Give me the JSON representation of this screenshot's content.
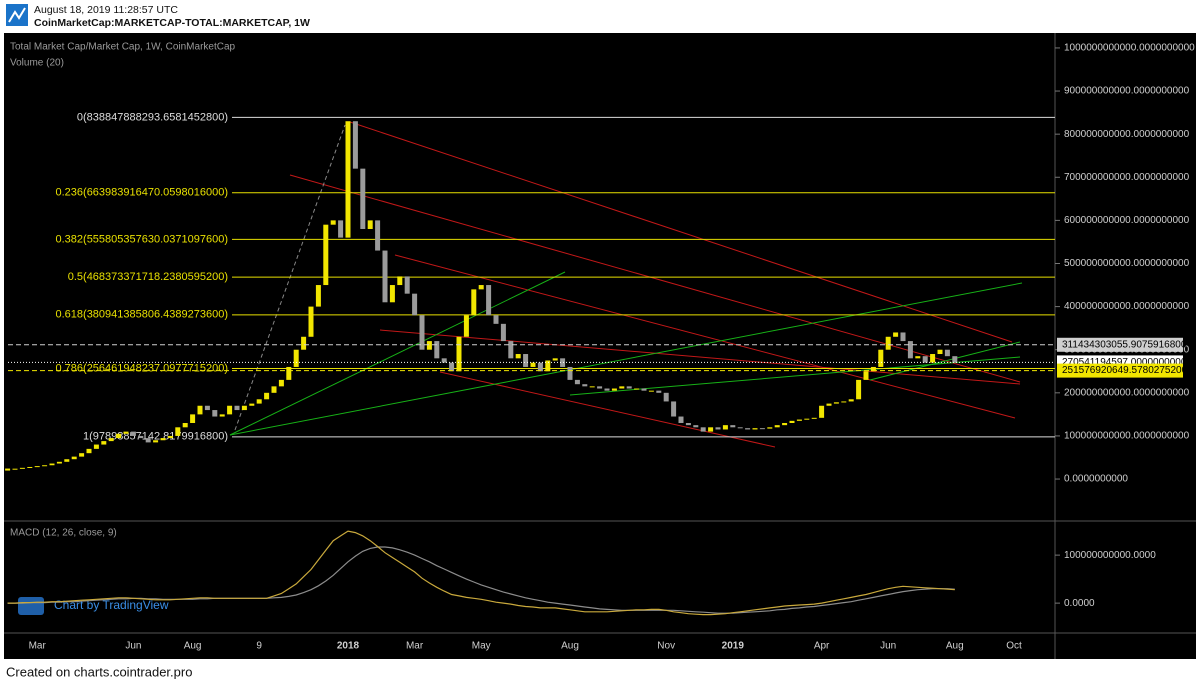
{
  "header": {
    "timestamp": "August 18, 2019 11:28:57 UTC",
    "symbol": "CoinMarketCap:MARKETCAP-TOTAL:MARKETCAP, 1W"
  },
  "footer": "Created on charts.cointrader.pro",
  "chart_data": {
    "type": "candlestick",
    "title": "Total Market Cap/Market Cap, 1W, CoinMarketCap",
    "subtitle": "Volume (20)",
    "watermark": "Chart by TradingView",
    "up_color": "#f2e600",
    "down_color": "#9b9b9b",
    "categories": [
      null,
      null,
      null,
      null,
      "Mar",
      null,
      null,
      null,
      null,
      null,
      null,
      null,
      null,
      null,
      null,
      null,
      null,
      "Jun",
      null,
      null,
      null,
      null,
      null,
      null,
      null,
      "Aug",
      null,
      null,
      null,
      null,
      null,
      null,
      null,
      null,
      "9",
      null,
      null,
      null,
      null,
      null,
      null,
      null,
      null,
      null,
      null,
      null,
      "2018",
      null,
      null,
      null,
      null,
      null,
      null,
      null,
      null,
      "Mar",
      null,
      null,
      null,
      null,
      null,
      null,
      null,
      null,
      "May",
      null,
      null,
      null,
      null,
      null,
      null,
      null,
      null,
      null,
      null,
      null,
      "Aug",
      null,
      null,
      null,
      null,
      null,
      null,
      null,
      null,
      null,
      null,
      null,
      null,
      "Nov",
      null,
      null,
      null,
      null,
      null,
      null,
      null,
      null,
      "2019",
      null,
      null,
      null,
      null,
      null,
      null,
      null,
      null,
      null,
      null,
      null,
      "Apr",
      null,
      null,
      null,
      null,
      null,
      null,
      null,
      null,
      "Jun",
      null,
      null,
      null,
      null,
      null,
      null,
      null,
      null,
      "Aug",
      null,
      null,
      null,
      null,
      null,
      null,
      null,
      "Oct"
    ],
    "values": [
      22000000000.0,
      24000000000.0,
      26000000000.0,
      28000000000.0,
      30000000000.0,
      32000000000.0,
      36000000000.0,
      40000000000.0,
      46000000000.0,
      52000000000.0,
      60000000000.0,
      70000000000.0,
      80000000000.0,
      88000000000.0,
      95000000000.0,
      105000000000.0,
      110000000000.0,
      100000000000.0,
      95000000000.0,
      85000000000.0,
      90000000000.0,
      95000000000.0,
      100000000000.0,
      120000000000.0,
      130000000000.0,
      150000000000.0,
      170000000000.0,
      160000000000.0,
      145000000000.0,
      150000000000.0,
      170000000000.0,
      160000000000.0,
      170000000000.0,
      175000000000.0,
      185000000000.0,
      200000000000.0,
      215000000000.0,
      230000000000.0,
      260000000000.0,
      300000000000.0,
      330000000000.0,
      400000000000.0,
      450000000000.0,
      590000000000.0,
      600000000000.0,
      560000000000.0,
      830000000000.0,
      720000000000.0,
      580000000000.0,
      600000000000.0,
      530000000000.0,
      410000000000.0,
      450000000000.0,
      470000000000.0,
      430000000000.0,
      380000000000.0,
      300000000000.0,
      320000000000.0,
      280000000000.0,
      270000000000.0,
      250000000000.0,
      330000000000.0,
      380000000000.0,
      440000000000.0,
      450000000000.0,
      380000000000.0,
      360000000000.0,
      320000000000.0,
      280000000000.0,
      290000000000.0,
      260000000000.0,
      270000000000.0,
      250000000000.0,
      275000000000.0,
      280000000000.0,
      260000000000.0,
      230000000000.0,
      220000000000.0,
      215000000000.0,
      215000000000.0,
      210000000000.0,
      205000000000.0,
      210000000000.0,
      215000000000.0,
      210000000000.0,
      210000000000.0,
      205000000000.0,
      205000000000.0,
      200000000000.0,
      180000000000.0,
      145000000000.0,
      130000000000.0,
      125000000000.0,
      120000000000.0,
      110000000000.0,
      120000000000.0,
      115000000000.0,
      125000000000.0,
      120000000000.0,
      118000000000.0,
      115000000000.0,
      118000000000.0,
      117000000000.0,
      120000000000.0,
      125000000000.0,
      130000000000.0,
      135000000000.0,
      138000000000.0,
      140000000000.0,
      142000000000.0,
      170000000000.0,
      175000000000.0,
      178000000000.0,
      180000000000.0,
      185000000000.0,
      230000000000.0,
      250000000000.0,
      260000000000.0,
      300000000000.0,
      330000000000.0,
      340000000000.0,
      320000000000.0,
      280000000000.0,
      285000000000.0,
      270000000000.0,
      290000000000.0,
      300000000000.0,
      285000000000.0,
      270000000000.0,
      null,
      null,
      null,
      null,
      null,
      null,
      null,
      null
    ],
    "ylim": [
      -95000000000.0,
      1030000000000.0
    ],
    "yticks": [
      {
        "value": 1000000000000.0,
        "label": "1000000000000.0000000000"
      },
      {
        "value": 900000000000.0,
        "label": "900000000000.0000000000"
      },
      {
        "value": 800000000000.0,
        "label": "800000000000.0000000000"
      },
      {
        "value": 700000000000.0,
        "label": "700000000000.0000000000"
      },
      {
        "value": 600000000000.0,
        "label": "600000000000.0000000000"
      },
      {
        "value": 500000000000.0,
        "label": "500000000000.0000000000"
      },
      {
        "value": 400000000000.0,
        "label": "400000000000.0000000000"
      },
      {
        "value": 300000000000.0,
        "label": "300000000000.0000000000"
      },
      {
        "value": 200000000000.0,
        "label": "200000000000.0000000000"
      },
      {
        "value": 100000000000.0,
        "label": "100000000000.0000000000"
      },
      {
        "value": 0,
        "label": "0.0000000000"
      }
    ],
    "fib_levels": [
      {
        "label": "0(838847888293.6581452800)",
        "value": 838847888293.6581,
        "color": "#dddddd"
      },
      {
        "label": "0.236(663983916470.0598016000)",
        "value": 663983916470.0598,
        "color": "#e8e000"
      },
      {
        "label": "0.382(555805357630.0371097600)",
        "value": 555805357630.0371,
        "color": "#e8e000"
      },
      {
        "label": "0.5(468373371718.2380595200)",
        "value": 468373371718.238,
        "color": "#e8e000"
      },
      {
        "label": "0.618(380941385806.4389273600)",
        "value": 380941385806.4389,
        "color": "#e8e000"
      },
      {
        "label": "0.786(256461948237.0977715200)",
        "value": 256461948237.0978,
        "color": "#e8e000"
      },
      {
        "label": "1(97898857142.8179916800)",
        "value": 97898857142.818,
        "color": "#dddddd"
      }
    ],
    "price_labels": [
      {
        "label": "311434303055.9075916800",
        "value": 311434303055.9076,
        "color": "#cfcfcf"
      },
      {
        "label": "270541194597.0000000000",
        "value": 270541194597,
        "color": "#ffffff"
      },
      {
        "label": "251576920649.5780275200",
        "value": 251576920649.578,
        "color": "#f2e600"
      }
    ],
    "macd": {
      "title": "MACD (12, 26, close, 9)",
      "line_color": "#c9a93c",
      "signal_color": "#8c8c8c",
      "ylim": [
        -56000000000.0,
        169000000000.0
      ],
      "yticks": [
        {
          "value": 100000000000.0,
          "label": "100000000000.0000"
        },
        {
          "value": 0,
          "label": "0.0000"
        }
      ],
      "line": [
        0,
        0,
        1000000000.0,
        1000000000.0,
        2000000000.0,
        2000000000.0,
        3000000000.0,
        3000000000.0,
        4000000000.0,
        5000000000.0,
        6000000000.0,
        7000000000.0,
        8000000000.0,
        9000000000.0,
        10000000000.0,
        11000000000.0,
        11000000000.0,
        10000000000.0,
        9000000000.0,
        8000000000.0,
        7000000000.0,
        7000000000.0,
        7000000000.0,
        8000000000.0,
        9000000000.0,
        10000000000.0,
        11000000000.0,
        11000000000.0,
        10000000000.0,
        10000000000.0,
        10000000000.0,
        10000000000.0,
        10000000000.0,
        10000000000.0,
        10000000000.0,
        10000000000.0,
        15000000000.0,
        20000000000.0,
        30000000000.0,
        40000000000.0,
        55000000000.0,
        70000000000.0,
        90000000000.0,
        110000000000.0,
        130000000000.0,
        140000000000.0,
        150000000000.0,
        147000000000.0,
        140000000000.0,
        130000000000.0,
        118000000000.0,
        105000000000.0,
        95000000000.0,
        85000000000.0,
        75000000000.0,
        65000000000.0,
        52000000000.0,
        42000000000.0,
        33000000000.0,
        25000000000.0,
        18000000000.0,
        15000000000.0,
        12000000000.0,
        10000000000.0,
        8000000000.0,
        5000000000.0,
        2000000000.0,
        0,
        -2000000000.0,
        -5000000000.0,
        -7000000000.0,
        -8000000000.0,
        -10000000000.0,
        -10000000000.0,
        -10000000000.0,
        -12000000000.0,
        -14000000000.0,
        -16000000000.0,
        -18000000000.0,
        -18000000000.0,
        -18000000000.0,
        -18000000000.0,
        -17000000000.0,
        -16000000000.0,
        -15000000000.0,
        -14000000000.0,
        -14000000000.0,
        -13000000000.0,
        -13000000000.0,
        -15000000000.0,
        -18000000000.0,
        -20000000000.0,
        -22000000000.0,
        -23000000000.0,
        -24000000000.0,
        -24000000000.0,
        -23000000000.0,
        -22000000000.0,
        -20000000000.0,
        -18000000000.0,
        -16000000000.0,
        -14000000000.0,
        -12000000000.0,
        -10000000000.0,
        -8000000000.0,
        -6000000000.0,
        -5000000000.0,
        -4000000000.0,
        -3000000000.0,
        -2000000000.0,
        0,
        3000000000.0,
        6000000000.0,
        9000000000.0,
        12000000000.0,
        15000000000.0,
        18000000000.0,
        22000000000.0,
        26000000000.0,
        30000000000.0,
        33000000000.0,
        35000000000.0,
        34000000000.0,
        33000000000.0,
        32000000000.0,
        31000000000.0,
        30000000000.0,
        29000000000.0,
        28000000000.0,
        null,
        null,
        null,
        null,
        null,
        null,
        null,
        null
      ],
      "signal": [
        0,
        0,
        0,
        1000000000.0,
        1000000000.0,
        1000000000.0,
        2000000000.0,
        2000000000.0,
        3000000000.0,
        3000000000.0,
        4000000000.0,
        5000000000.0,
        6000000000.0,
        7000000000.0,
        8000000000.0,
        9000000000.0,
        9000000000.0,
        10000000000.0,
        10000000000.0,
        9000000000.0,
        9000000000.0,
        8000000000.0,
        8000000000.0,
        8000000000.0,
        8000000000.0,
        8000000000.0,
        9000000000.0,
        9000000000.0,
        10000000000.0,
        10000000000.0,
        10000000000.0,
        10000000000.0,
        10000000000.0,
        10000000000.0,
        10000000000.0,
        10000000000.0,
        11000000000.0,
        12000000000.0,
        14000000000.0,
        17000000000.0,
        22000000000.0,
        28000000000.0,
        36000000000.0,
        46000000000.0,
        58000000000.0,
        72000000000.0,
        86000000000.0,
        98000000000.0,
        108000000000.0,
        114000000000.0,
        117000000000.0,
        117000000000.0,
        115000000000.0,
        111000000000.0,
        106000000000.0,
        100000000000.0,
        93000000000.0,
        86000000000.0,
        78000000000.0,
        71000000000.0,
        64000000000.0,
        57000000000.0,
        50000000000.0,
        44000000000.0,
        38000000000.0,
        33000000000.0,
        28000000000.0,
        23000000000.0,
        19000000000.0,
        15000000000.0,
        11000000000.0,
        8000000000.0,
        5000000000.0,
        2000000000.0,
        0,
        -2000000000.0,
        -4000000000.0,
        -6000000000.0,
        -8000000000.0,
        -10000000000.0,
        -12000000000.0,
        -13000000000.0,
        -14000000000.0,
        -15000000000.0,
        -15000000000.0,
        -15000000000.0,
        -15000000000.0,
        -15000000000.0,
        -15000000000.0,
        -15000000000.0,
        -15000000000.0,
        -16000000000.0,
        -17000000000.0,
        -18000000000.0,
        -19000000000.0,
        -20000000000.0,
        -21000000000.0,
        -21000000000.0,
        -21000000000.0,
        -20000000000.0,
        -19000000000.0,
        -18000000000.0,
        -17000000000.0,
        -16000000000.0,
        -14000000000.0,
        -13000000000.0,
        -11000000000.0,
        -10000000000.0,
        -8000000000.0,
        -7000000000.0,
        -5000000000.0,
        -3000000000.0,
        -1000000000.0,
        1000000000.0,
        3000000000.0,
        6000000000.0,
        9000000000.0,
        12000000000.0,
        15000000000.0,
        18000000000.0,
        21000000000.0,
        24000000000.0,
        26000000000.0,
        28000000000.0,
        29000000000.0,
        30000000000.0,
        30000000000.0,
        30000000000.0,
        29000000000.0,
        null,
        null,
        null,
        null,
        null,
        null,
        null,
        null
      ]
    }
  }
}
